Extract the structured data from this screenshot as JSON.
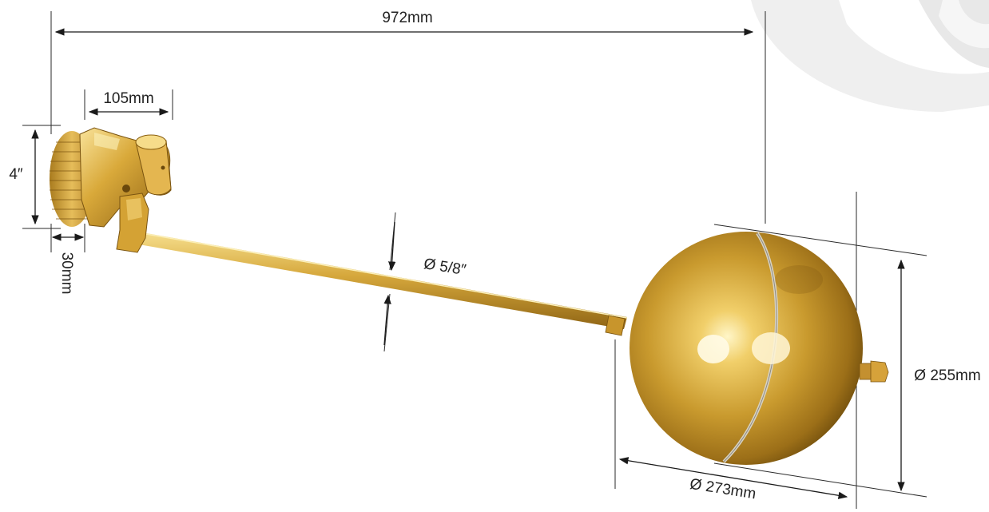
{
  "dimensions": {
    "overall_length": "972mm",
    "valve_length": "105mm",
    "valve_thread": "4″",
    "valve_offset": "30mm",
    "rod_diameter": "Ø 5/8″",
    "ball_height": "Ø 255mm",
    "ball_diameter": "Ø 273mm"
  },
  "colors": {
    "brass_light": "#f6dc8a",
    "brass_mid": "#d2a235",
    "brass_dark": "#8a5f10",
    "watermark": "#ececec",
    "dimension_line": "#1a1a1a"
  }
}
